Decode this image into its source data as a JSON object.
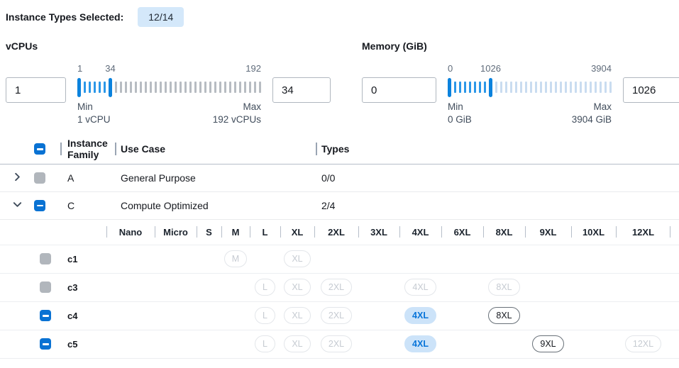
{
  "selection_summary": {
    "label": "Instance Types Selected:",
    "count_badge": "12/14"
  },
  "filters": {
    "vcpus": {
      "title": "vCPUs",
      "min_input": "1",
      "max_input": "34",
      "scale_min": "1",
      "scale_current": "34",
      "scale_max": "192",
      "min_label": "Min",
      "min_caption": "1 vCPU",
      "max_label": "Max",
      "max_caption": "192 vCPUs",
      "active_ticks": 5,
      "inactive_ticks": 30,
      "inactive_style": "gray"
    },
    "memory": {
      "title": "Memory (GiB)",
      "min_input": "0",
      "max_input": "1026",
      "scale_min": "0",
      "scale_current": "1026",
      "scale_max": "3904",
      "min_label": "Min",
      "min_caption": "0 GiB",
      "max_label": "Max",
      "max_caption": "3904 GiB",
      "active_ticks": 7,
      "inactive_ticks": 24,
      "inactive_style": "blue"
    }
  },
  "table": {
    "header": {
      "family": "Instance Family",
      "use_case": "Use Case",
      "types": "Types",
      "select_all_state": "indeterminate"
    },
    "families": [
      {
        "name": "A",
        "use_case": "General Purpose",
        "types": "0/0",
        "expanded": false,
        "checkbox": "disabled"
      },
      {
        "name": "C",
        "use_case": "Compute Optimized",
        "types": "2/4",
        "expanded": true,
        "checkbox": "indeterminate"
      }
    ],
    "sizes": [
      "Nano",
      "Micro",
      "S",
      "M",
      "L",
      "XL",
      "2XL",
      "3XL",
      "4XL",
      "6XL",
      "8XL",
      "9XL",
      "10XL",
      "12XL"
    ],
    "instances": [
      {
        "name": "c1",
        "checkbox": "disabled",
        "types": [
          {
            "size": "M",
            "state": "disabled"
          },
          {
            "size": "XL",
            "state": "disabled"
          }
        ]
      },
      {
        "name": "c3",
        "checkbox": "disabled",
        "types": [
          {
            "size": "L",
            "state": "disabled"
          },
          {
            "size": "XL",
            "state": "disabled"
          },
          {
            "size": "2XL",
            "state": "disabled"
          },
          {
            "size": "4XL",
            "state": "disabled"
          },
          {
            "size": "8XL",
            "state": "disabled"
          }
        ]
      },
      {
        "name": "c4",
        "checkbox": "indeterminate",
        "types": [
          {
            "size": "L",
            "state": "disabled"
          },
          {
            "size": "XL",
            "state": "disabled"
          },
          {
            "size": "2XL",
            "state": "disabled"
          },
          {
            "size": "4XL",
            "state": "selected"
          },
          {
            "size": "8XL",
            "state": "enabled"
          }
        ]
      },
      {
        "name": "c5",
        "checkbox": "indeterminate",
        "types": [
          {
            "size": "L",
            "state": "disabled"
          },
          {
            "size": "XL",
            "state": "disabled"
          },
          {
            "size": "2XL",
            "state": "disabled"
          },
          {
            "size": "4XL",
            "state": "selected"
          },
          {
            "size": "9XL",
            "state": "enabled"
          },
          {
            "size": "12XL",
            "state": "disabled"
          }
        ]
      }
    ]
  },
  "colors": {
    "accent": "#0972d3",
    "count_badge_bg": "#d4e8fa",
    "selected_pill_bg": "#cce3f9",
    "selected_pill_text": "#0774d9",
    "slider_active": "#2b97e8",
    "slider_handle": "#0b82dd",
    "slider_idle_gray": "#b7bcc2",
    "slider_idle_blue": "#c9dcf0",
    "disabled_checkbox": "#b1b6bc"
  }
}
